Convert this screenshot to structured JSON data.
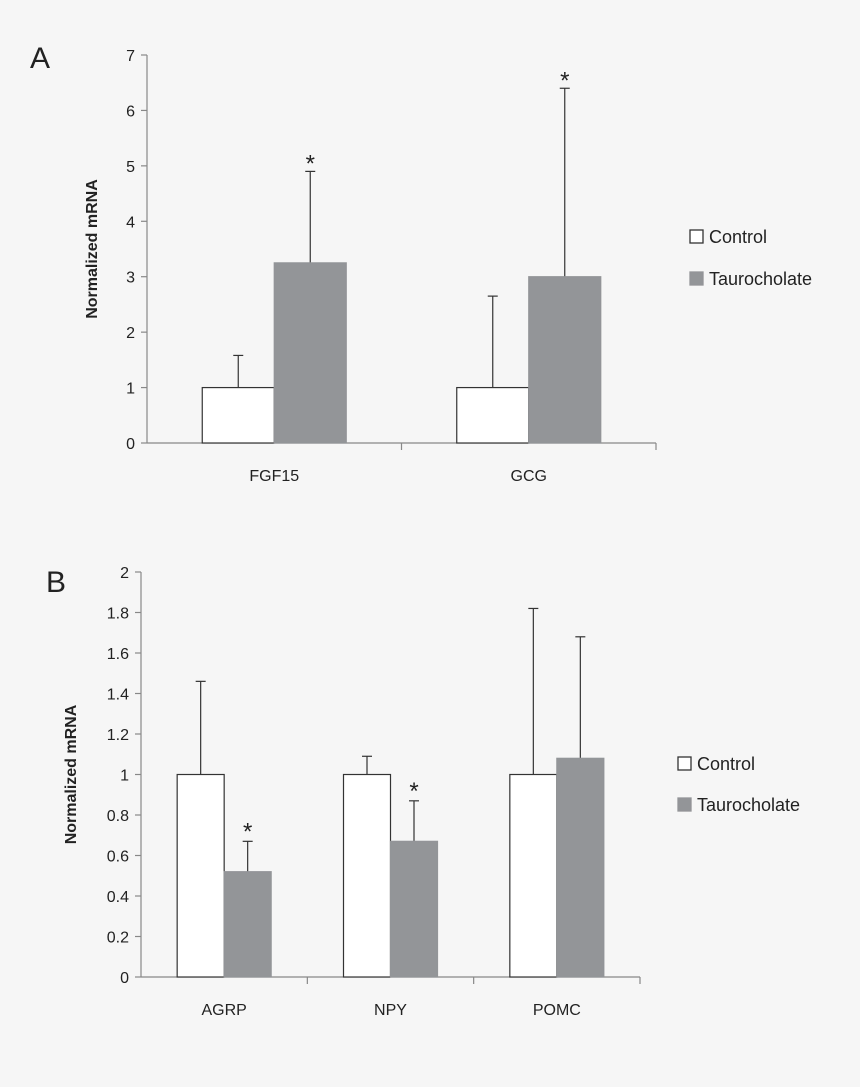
{
  "colors": {
    "control": "#ffffff",
    "taurocholate": "#939598",
    "ink": "#333333"
  },
  "chart_data": [
    {
      "type": "bar",
      "panel": "A",
      "ylabel": "Normalized mRNA",
      "ylim": [
        0,
        7
      ],
      "yticks": [
        "0",
        "1",
        "2",
        "3",
        "4",
        "5",
        "6",
        "7"
      ],
      "categories": [
        "FGF15",
        "GCG"
      ],
      "series": [
        {
          "name": "Control",
          "values": [
            1,
            1
          ],
          "error_upper": [
            1.58,
            2.65
          ]
        },
        {
          "name": "Taurocholate",
          "values": [
            3.25,
            3.0
          ],
          "error_upper": [
            4.9,
            6.4
          ]
        }
      ],
      "significance": [
        {
          "category": "FGF15",
          "series": "Taurocholate",
          "label": "*"
        },
        {
          "category": "GCG",
          "series": "Taurocholate",
          "label": "*"
        }
      ],
      "legend": "right"
    },
    {
      "type": "bar",
      "panel": "B",
      "ylabel": "Normalized mRNA",
      "ylim": [
        0,
        2
      ],
      "yticks": [
        "0",
        "0.2",
        "0.4",
        "0.6",
        "0.8",
        "1",
        "1.2",
        "1.4",
        "1.6",
        "1.8",
        "2"
      ],
      "categories": [
        "AGRP",
        "NPY",
        "POMC"
      ],
      "series": [
        {
          "name": "Control",
          "values": [
            1,
            1,
            1
          ],
          "error_upper": [
            1.46,
            1.09,
            1.82
          ]
        },
        {
          "name": "Taurocholate",
          "values": [
            0.52,
            0.67,
            1.08
          ],
          "error_upper": [
            0.67,
            0.87,
            1.68
          ]
        }
      ],
      "significance": [
        {
          "category": "AGRP",
          "series": "Taurocholate",
          "label": "*"
        },
        {
          "category": "NPY",
          "series": "Taurocholate",
          "label": "*"
        }
      ],
      "legend": "right"
    }
  ]
}
